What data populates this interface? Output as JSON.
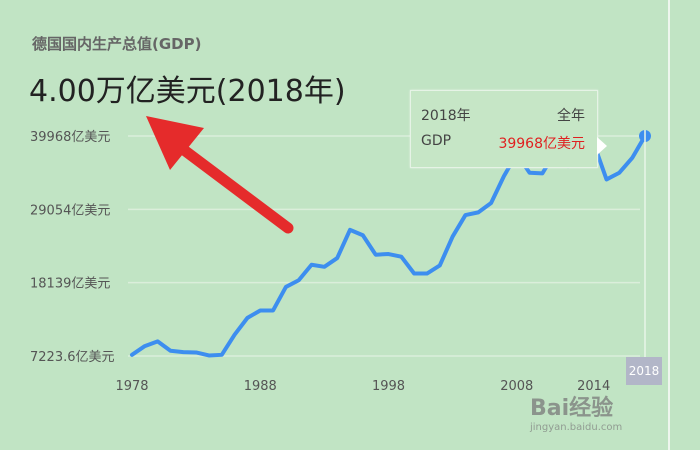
{
  "header": {
    "title": "德国国内生产总值(GDP)",
    "headline": "4.00万亿美元(2018年)"
  },
  "tooltip": {
    "year": "2018年",
    "period": "全年",
    "metric": "GDP",
    "value": "39968亿美元"
  },
  "badge": {
    "year": "2018"
  },
  "watermark": {
    "brand": "Bai经验",
    "url": "jingyan.baidu.com"
  },
  "colors": {
    "line": "#3d8eef",
    "arrow": "#e52b2b",
    "value_red": "#e02020"
  },
  "chart_data": {
    "type": "line",
    "title": "德国国内生产总值(GDP)",
    "ylabel": "",
    "xlabel": "",
    "y_ticks": [
      7223.6,
      18139,
      29054,
      39968
    ],
    "y_tick_labels": [
      "7223.6亿美元",
      "18139亿美元",
      "29054亿美元",
      "39968亿美元"
    ],
    "x_ticks": [
      1978,
      1988,
      1998,
      2008,
      2014
    ],
    "x_tick_labels": [
      "1978",
      "1988",
      "1998",
      "2008",
      "2014"
    ],
    "ylim": [
      7223.6,
      39968
    ],
    "xlim": [
      1978,
      2018
    ],
    "grid": true,
    "series": [
      {
        "x": [
          1978,
          1979,
          1980,
          1981,
          1982,
          1983,
          1984,
          1985,
          1986,
          1987,
          1988,
          1989,
          1990,
          1991,
          1992,
          1993,
          1994,
          1995,
          1996,
          1997,
          1998,
          1999,
          2000,
          2001,
          2002,
          2003,
          2004,
          2005,
          2006,
          2007,
          2008,
          2009,
          2010,
          2011,
          2012,
          2013,
          2014,
          2015,
          2016,
          2017,
          2018
        ],
        "values": [
          7400,
          8700,
          9400,
          8000,
          7800,
          7750,
          7300,
          7400,
          10400,
          12900,
          14000,
          14000,
          17500,
          18500,
          20800,
          20500,
          21800,
          26000,
          25200,
          22300,
          22400,
          22000,
          19500,
          19500,
          20700,
          25000,
          28200,
          28600,
          30000,
          34000,
          37300,
          34500,
          34400,
          37600,
          35500,
          37600,
          38900,
          33500,
          34500,
          36700,
          39968
        ]
      }
    ]
  }
}
